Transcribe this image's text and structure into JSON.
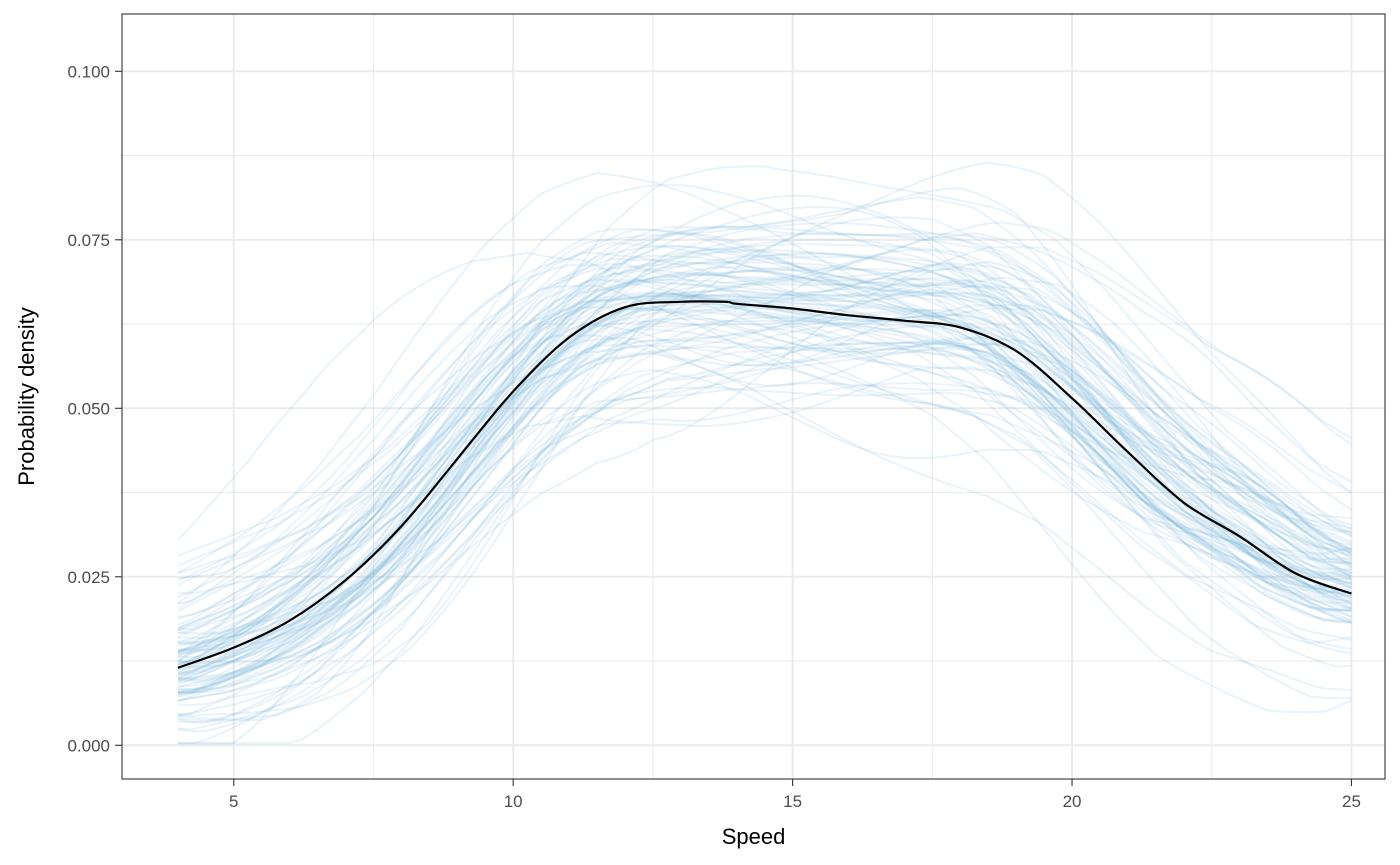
{
  "chart_data": {
    "type": "line",
    "title": "",
    "xlabel": "Speed",
    "ylabel": "Probability density",
    "xlim": [
      3,
      25.6
    ],
    "ylim": [
      -0.005,
      0.1085
    ],
    "x_ticks": [
      5,
      10,
      15,
      20,
      25
    ],
    "x_tick_labels": [
      "5",
      "10",
      "15",
      "20",
      "25"
    ],
    "y_ticks": [
      0,
      0.025,
      0.05,
      0.075,
      0.1
    ],
    "y_tick_labels": [
      "0.000",
      "0.025",
      "0.050",
      "0.075",
      "0.100"
    ],
    "grid": true,
    "legend": "none",
    "colors": {
      "replicates": "#6baed6",
      "mean": "#000000",
      "grid": "#ebebeb",
      "panel_border": "#333333"
    },
    "replicates": {
      "count": 100,
      "x_range": [
        4,
        25
      ],
      "opacity": 0.15
    },
    "series": [
      {
        "x": [
          4,
          5,
          6,
          7,
          8,
          9,
          10,
          11,
          12,
          13,
          13.8,
          14,
          15,
          16,
          17,
          18,
          19,
          20,
          21,
          22,
          23,
          24,
          25
        ],
        "values": [
          0.0115,
          0.0145,
          0.0185,
          0.0245,
          0.0325,
          0.0425,
          0.0525,
          0.0605,
          0.065,
          0.0658,
          0.0658,
          0.0655,
          0.0648,
          0.0638,
          0.063,
          0.062,
          0.0585,
          0.0515,
          0.0435,
          0.036,
          0.031,
          0.0255,
          0.0225
        ]
      }
    ]
  }
}
